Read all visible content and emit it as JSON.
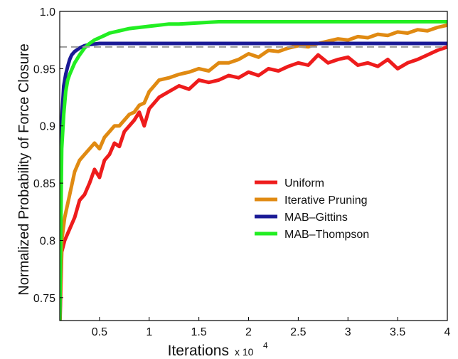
{
  "chart_data": {
    "type": "line",
    "title": "",
    "xlabel": "Iterations",
    "xlabel_multiplier": "x 10",
    "xlabel_exponent": "4",
    "ylabel": "Normalized Probability of Force Closure",
    "xlim": [
      0.1,
      4.0
    ],
    "ylim": [
      0.73,
      1.0
    ],
    "x_ticks": [
      0.5,
      1,
      1.5,
      2,
      2.5,
      3,
      3.5,
      4
    ],
    "x_tick_labels": [
      "0.5",
      "1",
      "1.5",
      "2",
      "2.5",
      "3",
      "3.5",
      "4"
    ],
    "y_ticks": [
      0.75,
      0.8,
      0.85,
      0.9,
      0.95,
      1.0
    ],
    "y_tick_labels": [
      "0.75",
      "0.8",
      "0.85",
      "0.9",
      "0.95",
      "1.0"
    ],
    "grid": false,
    "legend_position": "center-right",
    "reference_line": {
      "y": 0.969,
      "style": "dashed",
      "color": "#9a9a9a"
    },
    "series": [
      {
        "name": "Uniform",
        "color": "#ee1c1c",
        "x": [
          0.1,
          0.12,
          0.15,
          0.2,
          0.25,
          0.3,
          0.35,
          0.4,
          0.45,
          0.5,
          0.55,
          0.6,
          0.65,
          0.7,
          0.75,
          0.8,
          0.85,
          0.9,
          0.95,
          1.0,
          1.05,
          1.1,
          1.2,
          1.3,
          1.4,
          1.5,
          1.6,
          1.7,
          1.8,
          1.9,
          2.0,
          2.1,
          2.2,
          2.3,
          2.4,
          2.5,
          2.6,
          2.7,
          2.8,
          2.9,
          3.0,
          3.1,
          3.2,
          3.3,
          3.4,
          3.5,
          3.6,
          3.7,
          3.8,
          3.9,
          4.0
        ],
        "values": [
          0.72,
          0.79,
          0.8,
          0.81,
          0.82,
          0.835,
          0.84,
          0.85,
          0.862,
          0.855,
          0.87,
          0.875,
          0.885,
          0.882,
          0.895,
          0.9,
          0.905,
          0.912,
          0.9,
          0.915,
          0.92,
          0.925,
          0.93,
          0.935,
          0.932,
          0.94,
          0.938,
          0.94,
          0.944,
          0.942,
          0.947,
          0.944,
          0.95,
          0.948,
          0.952,
          0.955,
          0.953,
          0.962,
          0.955,
          0.958,
          0.96,
          0.953,
          0.955,
          0.952,
          0.958,
          0.95,
          0.955,
          0.958,
          0.962,
          0.966,
          0.969
        ]
      },
      {
        "name": "Iterative Pruning",
        "color": "#e08a12",
        "x": [
          0.1,
          0.12,
          0.15,
          0.2,
          0.25,
          0.3,
          0.35,
          0.4,
          0.45,
          0.5,
          0.55,
          0.6,
          0.65,
          0.7,
          0.75,
          0.8,
          0.85,
          0.9,
          0.95,
          1.0,
          1.05,
          1.1,
          1.2,
          1.3,
          1.4,
          1.5,
          1.6,
          1.7,
          1.8,
          1.9,
          2.0,
          2.1,
          2.2,
          2.3,
          2.4,
          2.5,
          2.6,
          2.7,
          2.8,
          2.9,
          3.0,
          3.1,
          3.2,
          3.3,
          3.4,
          3.5,
          3.6,
          3.7,
          3.8,
          3.9,
          4.0
        ],
        "values": [
          0.73,
          0.8,
          0.82,
          0.84,
          0.86,
          0.87,
          0.875,
          0.88,
          0.885,
          0.88,
          0.89,
          0.895,
          0.9,
          0.9,
          0.905,
          0.91,
          0.912,
          0.918,
          0.92,
          0.93,
          0.935,
          0.94,
          0.942,
          0.945,
          0.947,
          0.95,
          0.948,
          0.955,
          0.955,
          0.958,
          0.963,
          0.96,
          0.966,
          0.965,
          0.968,
          0.97,
          0.969,
          0.972,
          0.974,
          0.976,
          0.975,
          0.978,
          0.977,
          0.98,
          0.979,
          0.982,
          0.981,
          0.984,
          0.983,
          0.986,
          0.988
        ]
      },
      {
        "name": "MAB–Gittins",
        "color": "#1a1a96",
        "x": [
          0.1,
          0.12,
          0.14,
          0.16,
          0.18,
          0.2,
          0.22,
          0.25,
          0.3,
          0.35,
          0.4,
          0.5,
          0.6,
          0.8,
          1.0,
          2.0,
          3.0,
          4.0
        ],
        "values": [
          0.73,
          0.905,
          0.935,
          0.945,
          0.952,
          0.958,
          0.962,
          0.965,
          0.968,
          0.97,
          0.971,
          0.972,
          0.972,
          0.972,
          0.972,
          0.972,
          0.972,
          0.972
        ]
      },
      {
        "name": "MAB–Thompson",
        "color": "#22ee22",
        "x": [
          0.1,
          0.12,
          0.14,
          0.16,
          0.18,
          0.2,
          0.25,
          0.3,
          0.35,
          0.4,
          0.45,
          0.5,
          0.55,
          0.6,
          0.7,
          0.8,
          0.9,
          1.0,
          1.1,
          1.2,
          1.3,
          1.5,
          1.7,
          2.0,
          2.5,
          3.0,
          3.5,
          4.0
        ],
        "values": [
          0.73,
          0.88,
          0.91,
          0.93,
          0.94,
          0.945,
          0.955,
          0.962,
          0.968,
          0.972,
          0.975,
          0.977,
          0.979,
          0.981,
          0.983,
          0.985,
          0.986,
          0.987,
          0.988,
          0.989,
          0.989,
          0.99,
          0.991,
          0.991,
          0.991,
          0.991,
          0.991,
          0.991
        ]
      }
    ]
  }
}
